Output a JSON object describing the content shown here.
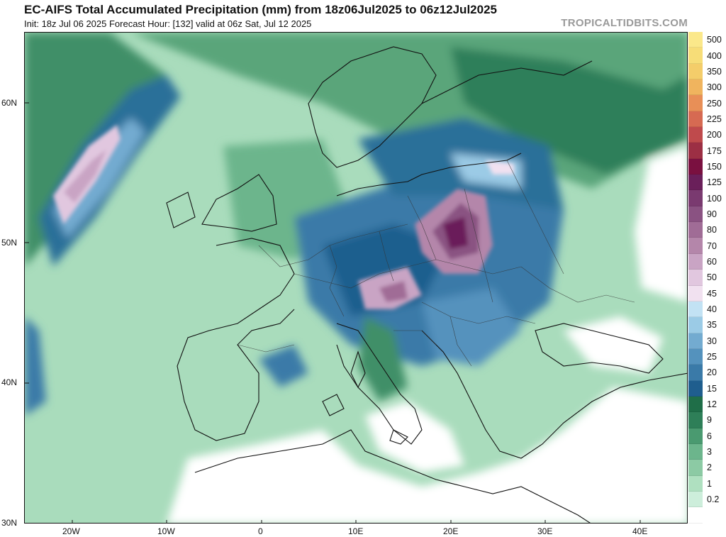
{
  "header": {
    "title": "EC-AIFS Total Accumulated Precipitation (mm) from 18z06Jul2025 to 06z12Jul2025",
    "subtitle": "Init: 18z Jul 06 2025   Forecast Hour: [132]   valid at 06z Sat, Jul 12 2025",
    "credit": "TROPICALTIDBITS.COM"
  },
  "axes": {
    "lat_labels": [
      "60N",
      "50N",
      "40N",
      "30N"
    ],
    "lon_labels": [
      "20W",
      "10W",
      "0",
      "10E",
      "20E",
      "30E",
      "40E"
    ]
  },
  "legend": {
    "entries": [
      {
        "label": "500",
        "color": "#fbe88a"
      },
      {
        "label": "400",
        "color": "#f7dd78"
      },
      {
        "label": "350",
        "color": "#f4cd6a"
      },
      {
        "label": "300",
        "color": "#f0b45e"
      },
      {
        "label": "250",
        "color": "#e88f57"
      },
      {
        "label": "225",
        "color": "#d66a52"
      },
      {
        "label": "200",
        "color": "#bf4a4c"
      },
      {
        "label": "175",
        "color": "#9c2f44"
      },
      {
        "label": "150",
        "color": "#7a1040"
      },
      {
        "label": "125",
        "color": "#6a1f5a"
      },
      {
        "label": "100",
        "color": "#7a3a70"
      },
      {
        "label": "90",
        "color": "#8a5282"
      },
      {
        "label": "80",
        "color": "#a06c96"
      },
      {
        "label": "70",
        "color": "#b486aa"
      },
      {
        "label": "60",
        "color": "#c9a4c4"
      },
      {
        "label": "50",
        "color": "#e1c7df"
      },
      {
        "label": "45",
        "color": "#f1e1f0"
      },
      {
        "label": "40",
        "color": "#c2e2f4"
      },
      {
        "label": "35",
        "color": "#9bcbe6"
      },
      {
        "label": "30",
        "color": "#73abd0"
      },
      {
        "label": "25",
        "color": "#5492bd"
      },
      {
        "label": "20",
        "color": "#3a7aa8"
      },
      {
        "label": "15",
        "color": "#1f5e8e"
      },
      {
        "label": "12",
        "color": "#1f6e48"
      },
      {
        "label": "9",
        "color": "#2e7f58"
      },
      {
        "label": "6",
        "color": "#4a9a70"
      },
      {
        "label": "3",
        "color": "#6cb58c"
      },
      {
        "label": "2",
        "color": "#8ccaa4"
      },
      {
        "label": "1",
        "color": "#afe0c0"
      },
      {
        "label": "0.2",
        "color": "#cdeedb"
      },
      {
        "label": "",
        "color": "#ffffff"
      }
    ]
  }
}
